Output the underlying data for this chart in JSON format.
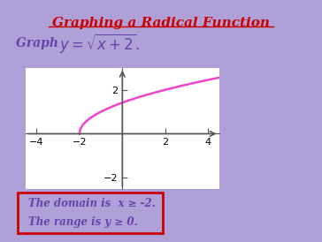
{
  "title": "Graphing a Radical Function",
  "title_color": "#cc0000",
  "title_fontsize": 11,
  "background_color": "#b0a0d8",
  "xlim": [
    -4.5,
    4.5
  ],
  "ylim": [
    -2.5,
    3.0
  ],
  "xticks": [
    -4,
    -2,
    0,
    2,
    4
  ],
  "yticks": [
    -2,
    0,
    2
  ],
  "curve_color": "#ee44cc",
  "curve_linewidth": 1.8,
  "domain_text1": "The domain is  x ≥ -2.",
  "domain_text2": "The range is y ≥ 0.",
  "box_edge_color": "#cc0000",
  "text_color_purple": "#6644aa",
  "graph_bg": "#ffffff",
  "axis_color": "#555555"
}
